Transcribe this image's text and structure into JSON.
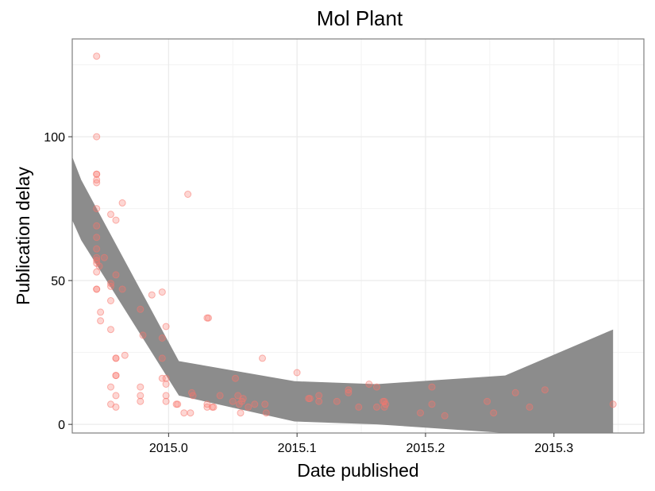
{
  "chart_data": {
    "type": "scatter",
    "title": "Mol Plant",
    "xlabel": "Date published",
    "ylabel": "Publication delay",
    "xlim": [
      2014.925,
      2015.37
    ],
    "ylim": [
      -3,
      134
    ],
    "x_ticks": [
      2015.0,
      2015.1,
      2015.2,
      2015.3
    ],
    "x_tick_labels": [
      "2015.0",
      "2015.1",
      "2015.2",
      "2015.3"
    ],
    "y_ticks": [
      0,
      50,
      100
    ],
    "y_tick_labels": [
      "0",
      "50",
      "100"
    ],
    "grid": true,
    "point_color": "#f8766d",
    "ribbon_color": "#8c8c8c",
    "points": [
      [
        2014.944,
        128
      ],
      [
        2014.944,
        100
      ],
      [
        2014.944,
        87
      ],
      [
        2014.944,
        87
      ],
      [
        2014.944,
        85
      ],
      [
        2014.944,
        84
      ],
      [
        2014.944,
        75
      ],
      [
        2014.944,
        69
      ],
      [
        2014.944,
        65
      ],
      [
        2014.944,
        61
      ],
      [
        2014.944,
        58
      ],
      [
        2014.944,
        57
      ],
      [
        2014.944,
        56
      ],
      [
        2014.944,
        53
      ],
      [
        2014.944,
        47
      ],
      [
        2014.944,
        47
      ],
      [
        2014.946,
        55
      ],
      [
        2014.947,
        39
      ],
      [
        2014.947,
        36
      ],
      [
        2014.95,
        58
      ],
      [
        2014.955,
        73
      ],
      [
        2014.955,
        49
      ],
      [
        2014.955,
        48
      ],
      [
        2014.955,
        43
      ],
      [
        2014.955,
        33
      ],
      [
        2014.955,
        13
      ],
      [
        2014.955,
        7
      ],
      [
        2014.959,
        71
      ],
      [
        2014.959,
        52
      ],
      [
        2014.959,
        23
      ],
      [
        2014.959,
        23
      ],
      [
        2014.959,
        17
      ],
      [
        2014.959,
        17
      ],
      [
        2014.959,
        10
      ],
      [
        2014.959,
        6
      ],
      [
        2014.964,
        77
      ],
      [
        2014.964,
        47
      ],
      [
        2014.966,
        24
      ],
      [
        2014.978,
        40
      ],
      [
        2014.978,
        13
      ],
      [
        2014.978,
        10
      ],
      [
        2014.978,
        8
      ],
      [
        2014.98,
        31
      ],
      [
        2014.987,
        45
      ],
      [
        2014.995,
        46
      ],
      [
        2014.995,
        30
      ],
      [
        2014.995,
        23
      ],
      [
        2014.995,
        16
      ],
      [
        2014.998,
        34
      ],
      [
        2014.998,
        16
      ],
      [
        2014.998,
        14
      ],
      [
        2014.998,
        10
      ],
      [
        2014.998,
        8
      ],
      [
        2015.006,
        7
      ],
      [
        2015.007,
        7
      ],
      [
        2015.012,
        4
      ],
      [
        2015.015,
        80
      ],
      [
        2015.017,
        4
      ],
      [
        2015.018,
        11
      ],
      [
        2015.019,
        10
      ],
      [
        2015.03,
        37
      ],
      [
        2015.031,
        37
      ],
      [
        2015.03,
        7
      ],
      [
        2015.03,
        6
      ],
      [
        2015.035,
        6
      ],
      [
        2015.034,
        6
      ],
      [
        2015.04,
        10
      ],
      [
        2015.05,
        8
      ],
      [
        2015.052,
        16
      ],
      [
        2015.054,
        10
      ],
      [
        2015.055,
        7
      ],
      [
        2015.056,
        4
      ],
      [
        2015.057,
        8
      ],
      [
        2015.058,
        9
      ],
      [
        2015.062,
        6
      ],
      [
        2015.067,
        7
      ],
      [
        2015.073,
        23
      ],
      [
        2015.075,
        7
      ],
      [
        2015.076,
        4
      ],
      [
        2015.1,
        18
      ],
      [
        2015.109,
        9
      ],
      [
        2015.11,
        9
      ],
      [
        2015.117,
        10
      ],
      [
        2015.117,
        8
      ],
      [
        2015.131,
        8
      ],
      [
        2015.14,
        11
      ],
      [
        2015.14,
        12
      ],
      [
        2015.148,
        6
      ],
      [
        2015.156,
        14
      ],
      [
        2015.162,
        13
      ],
      [
        2015.162,
        6
      ],
      [
        2015.167,
        8
      ],
      [
        2015.168,
        6
      ],
      [
        2015.169,
        7
      ],
      [
        2015.168,
        8
      ],
      [
        2015.196,
        4
      ],
      [
        2015.205,
        13
      ],
      [
        2015.205,
        7
      ],
      [
        2015.215,
        3
      ],
      [
        2015.248,
        8
      ],
      [
        2015.253,
        4
      ],
      [
        2015.27,
        11
      ],
      [
        2015.281,
        6
      ],
      [
        2015.293,
        12
      ],
      [
        2015.346,
        7
      ]
    ],
    "ribbon": {
      "x": [
        2014.925,
        2014.932,
        2015.008,
        2015.098,
        2015.162,
        2015.262,
        2015.346
      ],
      "upper": [
        93,
        85,
        22,
        15,
        14,
        17,
        33
      ],
      "lower": [
        71,
        64,
        10,
        1,
        0,
        -3,
        -3
      ]
    }
  }
}
